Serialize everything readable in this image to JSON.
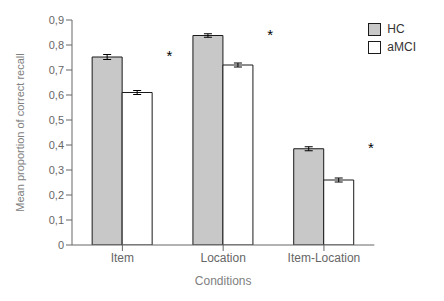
{
  "chart_data": {
    "type": "bar",
    "categories": [
      "Item",
      "Location",
      "Item-Location"
    ],
    "series": [
      {
        "name": "HC",
        "color": "#c8c8c8",
        "values": [
          0.752,
          0.838,
          0.385
        ],
        "errors": [
          0.01,
          0.007,
          0.008
        ]
      },
      {
        "name": "aMCI",
        "color": "#ffffff",
        "values": [
          0.61,
          0.72,
          0.26
        ],
        "errors": [
          0.008,
          0.008,
          0.008
        ]
      }
    ],
    "xlabel": "Conditions",
    "ylabel": "Mean proportion of correct recall",
    "ylim": [
      0,
      0.9
    ],
    "yticks": [
      0,
      {
        "value": 0.1,
        "label": "0,1"
      },
      {
        "value": 0.2,
        "label": "0,2"
      },
      {
        "value": 0.3,
        "label": "0,3"
      },
      {
        "value": 0.4,
        "label": "0,4"
      },
      {
        "value": 0.5,
        "label": "0,5"
      },
      {
        "value": 0.6,
        "label": "0,6"
      },
      {
        "value": 0.7,
        "label": "0,7"
      },
      {
        "value": 0.8,
        "label": "0,8"
      },
      {
        "value": 0.9,
        "label": "0,9"
      }
    ],
    "legend": "upper right",
    "grid": false,
    "annotations": [
      {
        "text": "*",
        "category": "Item"
      },
      {
        "text": "*",
        "category": "Location"
      },
      {
        "text": "*",
        "category": "Item-Location"
      }
    ]
  }
}
